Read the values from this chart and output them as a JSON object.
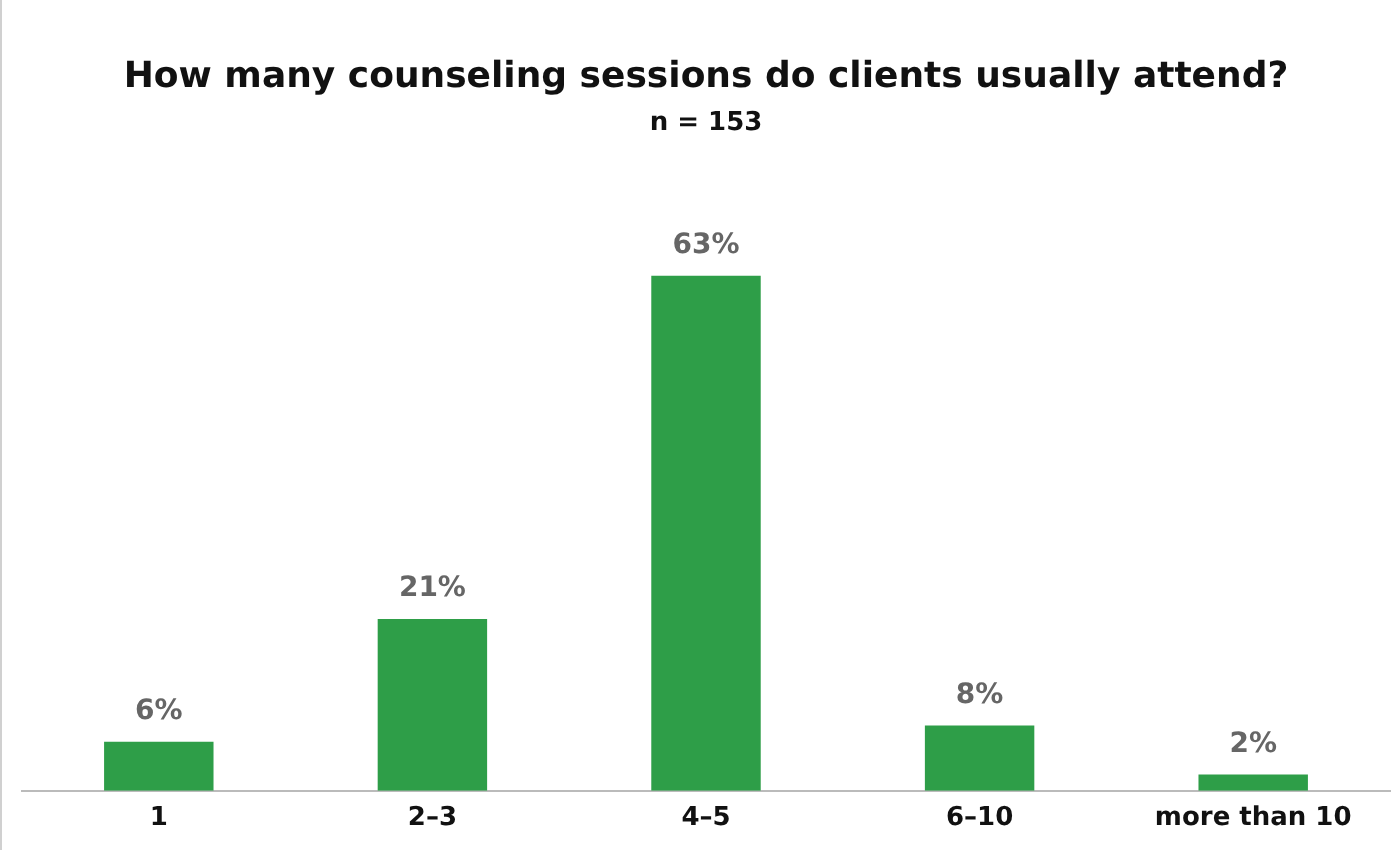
{
  "chart_data": {
    "type": "bar",
    "title": "How many counseling sessions do clients usually attend?",
    "subtitle": "n = 153",
    "categories": [
      "1",
      "2–3",
      "4–5",
      "6–10",
      "more than 10"
    ],
    "values": [
      6,
      21,
      63,
      8,
      2
    ],
    "value_labels": [
      "6%",
      "21%",
      "63%",
      "8%",
      "2%"
    ],
    "color": "#2e9e48",
    "grid": false,
    "legend": false
  }
}
